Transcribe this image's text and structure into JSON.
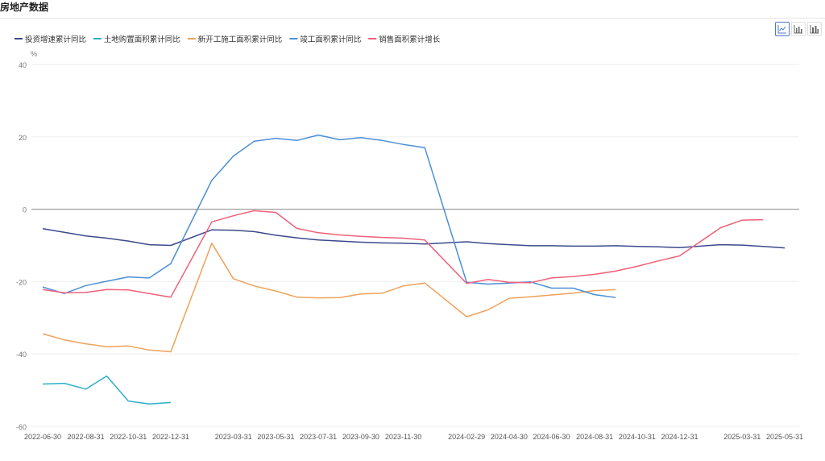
{
  "page": {
    "title": "房地产数据"
  },
  "toolbar": {
    "buttons": [
      {
        "icon": "line-chart-icon",
        "active": true
      },
      {
        "icon": "bar-chart-icon",
        "active": false
      },
      {
        "icon": "stacked-bar-icon",
        "active": false
      }
    ]
  },
  "chart_data": {
    "type": "line",
    "ylabel": "%",
    "ylim": [
      -60,
      40
    ],
    "yticks": [
      40,
      20,
      0,
      -20,
      -40,
      -60
    ],
    "categories": [
      "2022-06-30",
      "2022-07-31",
      "2022-08-31",
      "2022-09-30",
      "2022-10-31",
      "2022-11-30",
      "2022-12-31",
      "2023-02-28",
      "2023-03-31",
      "2023-04-30",
      "2023-05-31",
      "2023-06-30",
      "2023-07-31",
      "2023-08-31",
      "2023-09-30",
      "2023-10-31",
      "2023-11-30",
      "2023-12-31",
      "2024-02-29",
      "2024-03-31",
      "2024-04-30",
      "2024-05-31",
      "2024-06-30",
      "2024-07-31",
      "2024-08-31",
      "2024-09-30",
      "2024-10-31",
      "2024-11-30",
      "2024-12-31",
      "2025-02-28",
      "2025-03-31",
      "2025-04-30",
      "2025-05-31"
    ],
    "xtick_labels": [
      "2022-06-30",
      "2022-08-31",
      "2022-10-31",
      "2022-12-31",
      "2023-03-31",
      "2023-05-31",
      "2023-07-31",
      "2023-09-30",
      "2023-11-30",
      "2024-02-29",
      "2024-04-30",
      "2024-06-30",
      "2024-08-31",
      "2024-10-31",
      "2024-12-31",
      "2025-03-31",
      "2025-05-31"
    ],
    "legend_position": "top-left",
    "series": [
      {
        "name": "投资增速累计同比",
        "color": "#3b4a8c",
        "values": [
          -5.4,
          -6.4,
          -7.4,
          -8.0,
          -8.8,
          -9.8,
          -10.0,
          -5.7,
          -5.8,
          -6.2,
          -7.2,
          -7.9,
          -8.5,
          -8.8,
          -9.1,
          -9.3,
          -9.4,
          -9.6,
          -9.0,
          -9.5,
          -9.8,
          -10.1,
          -10.1,
          -10.2,
          -10.2,
          -10.1,
          -10.3,
          -10.4,
          -10.6,
          -9.8,
          -9.9,
          -10.3,
          -10.7
        ]
      },
      {
        "name": "土地购置面积累计同比",
        "color": "#2cb0c7",
        "values": [
          -48.3,
          -48.1,
          -49.7,
          -46.1,
          -53.0,
          -53.8,
          -53.4,
          null,
          null,
          null,
          null,
          null,
          null,
          null,
          null,
          null,
          null,
          null,
          null,
          null,
          null,
          null,
          null,
          null,
          null,
          null,
          null,
          null,
          null,
          null,
          null,
          null,
          null
        ]
      },
      {
        "name": "新开工施工面积累计同比",
        "color": "#f0a15a",
        "values": [
          -34.4,
          -36.1,
          -37.2,
          -38.0,
          -37.8,
          -38.9,
          -39.4,
          -9.4,
          -19.2,
          -21.2,
          -22.6,
          -24.3,
          -24.5,
          -24.4,
          -23.4,
          -23.2,
          -21.2,
          -20.4,
          -29.7,
          -27.8,
          -24.6,
          -24.2,
          -23.7,
          -23.2,
          -22.5,
          -22.2,
          null,
          null,
          null,
          null,
          null,
          null,
          null
        ]
      },
      {
        "name": "竣工面积累计同比",
        "color": "#4a8fd6",
        "values": [
          -21.5,
          -23.3,
          -21.1,
          -19.9,
          -18.7,
          -19.0,
          -15.0,
          8.0,
          14.7,
          18.8,
          19.6,
          19.0,
          20.5,
          19.2,
          19.8,
          19.0,
          17.9,
          17.0,
          -20.2,
          -20.7,
          -20.4,
          -20.1,
          -21.8,
          -21.8,
          -23.6,
          -24.4,
          null,
          null,
          null,
          null,
          null,
          null,
          null
        ]
      },
      {
        "name": "销售面积累计增长",
        "color": "#f0607a",
        "values": [
          -22.2,
          -23.1,
          -23.0,
          -22.2,
          -22.3,
          -23.3,
          -24.3,
          -3.5,
          -1.8,
          -0.4,
          -0.9,
          -5.3,
          -6.5,
          -7.1,
          -7.5,
          -7.8,
          -8.0,
          -8.5,
          -20.5,
          -19.4,
          -20.2,
          -20.3,
          -19.0,
          -18.6,
          -18.0,
          -17.1,
          -15.8,
          -14.3,
          -12.9,
          -5.1,
          -3.0,
          -2.9,
          null
        ]
      }
    ]
  }
}
